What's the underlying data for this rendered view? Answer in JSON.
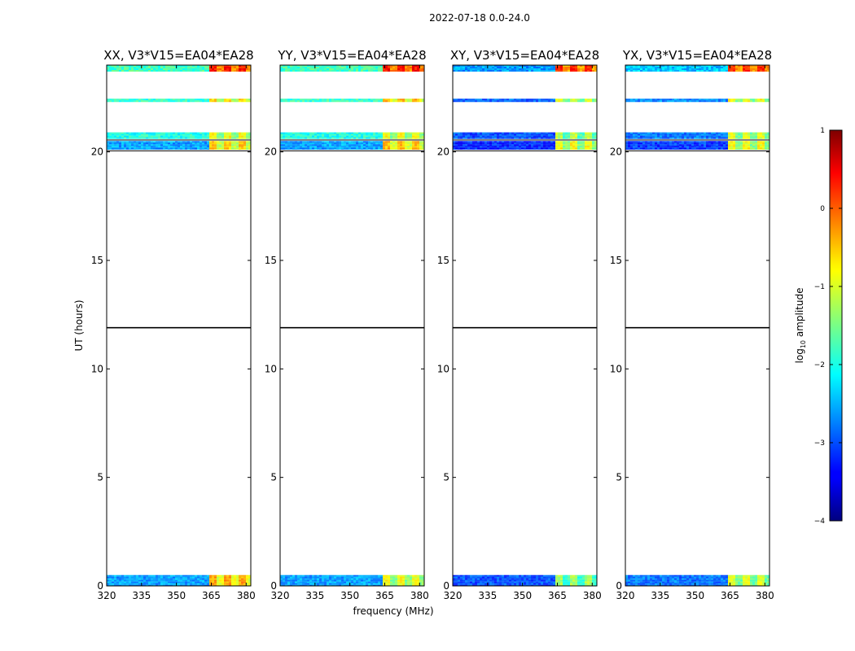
{
  "chart_data": {
    "type": "heatmap",
    "title": "2022-07-18 0.0-24.0",
    "xlabel": "frequency (MHz)",
    "ylabel": "UT (hours)",
    "xlim": [
      320,
      382
    ],
    "ylim": [
      0,
      24
    ],
    "xticks": [
      "320",
      "335",
      "350",
      "365",
      "380"
    ],
    "yticks": [
      "0",
      "5",
      "10",
      "15",
      "20"
    ],
    "baseline": "V3*V15=EA04*EA28",
    "panels": [
      {
        "name": "xx",
        "title": "XX, V3*V15=EA04*EA28",
        "bands": [
          {
            "t": [
              0.0,
              0.5
            ],
            "low": -2.6,
            "high": -0.4
          },
          {
            "t": [
              20.1,
              20.5
            ],
            "low": -2.6,
            "high": -0.6
          },
          {
            "t": [
              20.6,
              20.9
            ],
            "low": -2.0,
            "high": -0.9
          },
          {
            "t": [
              22.3,
              22.45
            ],
            "low": -1.9,
            "high": -0.7
          },
          {
            "t": [
              23.7,
              24.0
            ],
            "low": -1.8,
            "high": 0.3
          }
        ]
      },
      {
        "name": "yy",
        "title": "YY, V3*V15=EA04*EA28",
        "bands": [
          {
            "t": [
              0.0,
              0.5
            ],
            "low": -2.6,
            "high": -0.9
          },
          {
            "t": [
              20.1,
              20.5
            ],
            "low": -2.6,
            "high": -0.5
          },
          {
            "t": [
              20.6,
              20.9
            ],
            "low": -2.0,
            "high": -0.9
          },
          {
            "t": [
              22.3,
              22.45
            ],
            "low": -1.9,
            "high": -0.5
          },
          {
            "t": [
              23.7,
              24.0
            ],
            "low": -1.8,
            "high": 0.3
          }
        ]
      },
      {
        "name": "xy",
        "title": "XY, V3*V15=EA04*EA28",
        "bands": [
          {
            "t": [
              0.0,
              0.5
            ],
            "low": -3.0,
            "high": -1.3
          },
          {
            "t": [
              20.1,
              20.5
            ],
            "low": -3.2,
            "high": -0.9
          },
          {
            "t": [
              20.6,
              20.9
            ],
            "low": -3.0,
            "high": -1.2
          },
          {
            "t": [
              22.3,
              22.45
            ],
            "low": -2.9,
            "high": -1.0
          },
          {
            "t": [
              23.7,
              24.0
            ],
            "low": -2.6,
            "high": 0.2
          }
        ]
      },
      {
        "name": "yx",
        "title": "YX, V3*V15=EA04*EA28",
        "bands": [
          {
            "t": [
              0.0,
              0.5
            ],
            "low": -2.8,
            "high": -1.0
          },
          {
            "t": [
              20.1,
              20.5
            ],
            "low": -3.1,
            "high": -0.9
          },
          {
            "t": [
              20.6,
              20.9
            ],
            "low": -2.8,
            "high": -1.0
          },
          {
            "t": [
              22.3,
              22.45
            ],
            "low": -2.7,
            "high": -0.9
          },
          {
            "t": [
              23.7,
              24.0
            ],
            "low": -2.4,
            "high": 0.2
          }
        ]
      }
    ],
    "band_split_mhz": 363.5,
    "gap_lines_hours": [
      11.9,
      20.05,
      20.55,
      24.0
    ],
    "colorbar": {
      "label": "log₁₀ amplitude",
      "label_base": "log",
      "label_sub": "10",
      "label_rest": " amplitude",
      "range": [
        -4,
        1
      ],
      "ticks": [
        "1",
        "0",
        "−1",
        "−2",
        "−3",
        "−4"
      ],
      "colormap": "jet"
    }
  }
}
